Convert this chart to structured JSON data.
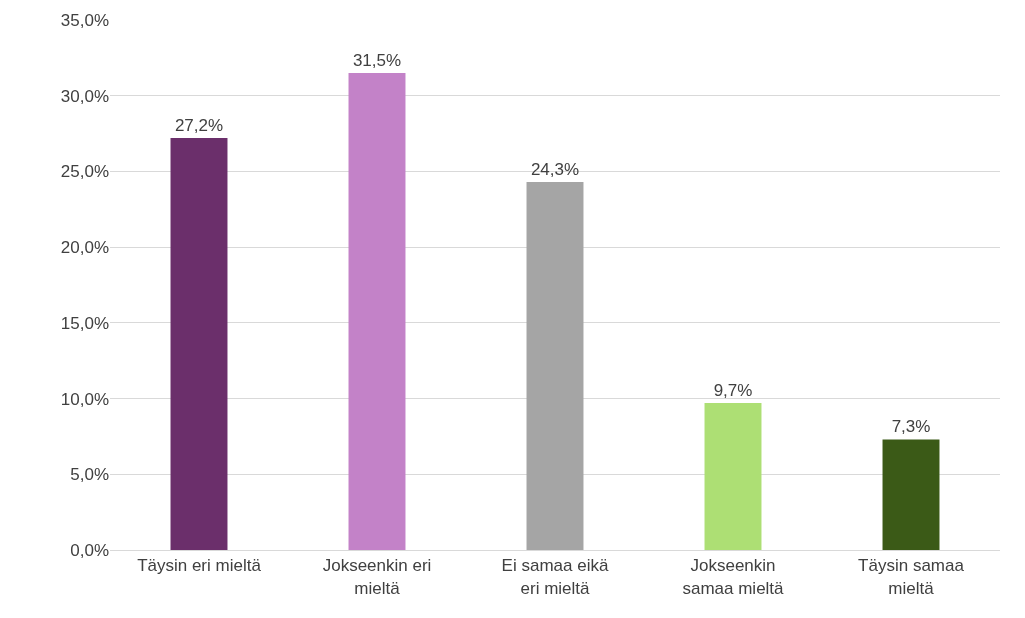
{
  "chart_data": {
    "type": "bar",
    "categories": [
      "Täysin eri mieltä",
      "Jokseenkin eri\nmieltä",
      "Ei samaa eikä\neri mieltä",
      "Jokseenkin\nsamaa mieltä",
      "Täysin samaa\nmieltä"
    ],
    "values": [
      27.2,
      31.5,
      24.3,
      9.7,
      7.3
    ],
    "value_labels": [
      "27,2%",
      "31,5%",
      "24,3%",
      "9,7%",
      "7,3%"
    ],
    "colors": [
      "#6b2f6b",
      "#c382c8",
      "#a5a5a5",
      "#addf74",
      "#3b5a17"
    ],
    "ylim": [
      0,
      35
    ],
    "yticks": [
      {
        "value": 0,
        "label": "0,0%"
      },
      {
        "value": 5,
        "label": "5,0%"
      },
      {
        "value": 10,
        "label": "10,0%"
      },
      {
        "value": 15,
        "label": "15,0%"
      },
      {
        "value": 20,
        "label": "20,0%"
      },
      {
        "value": 25,
        "label": "25,0%"
      },
      {
        "value": 30,
        "label": "30,0%"
      },
      {
        "value": 35,
        "label": "35,0%"
      }
    ],
    "grid": "y"
  }
}
